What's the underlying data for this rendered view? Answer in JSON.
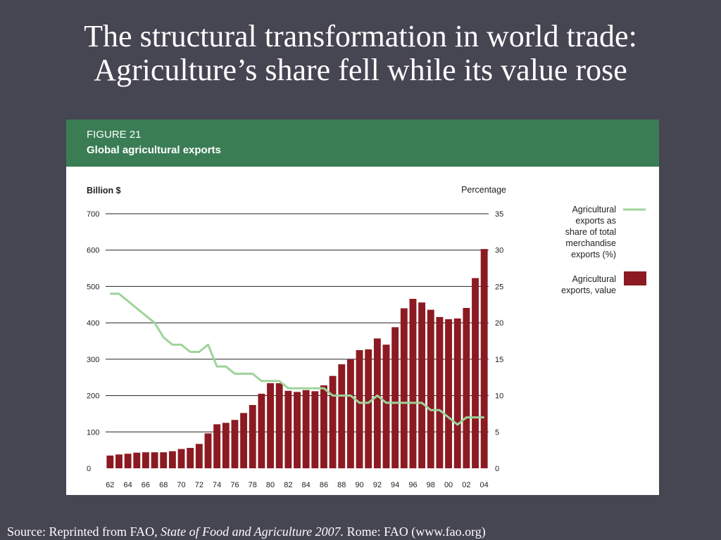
{
  "slide": {
    "title_line1": "The structural transformation in world trade:",
    "title_line2": "Agriculture’s share fell while its value rose"
  },
  "figure": {
    "number": "FIGURE 21",
    "caption": "Global agricultural exports"
  },
  "source": {
    "prefix": "Source: Reprinted from FAO, ",
    "title": "State of Food and Agriculture 2007.",
    "suffix": "  Rome: FAO (www.fao.org)"
  },
  "colors": {
    "background": "#464552",
    "header_green": "#3a7d55",
    "bar": "#8c1a22",
    "line": "#9dd49a"
  },
  "chart_data": {
    "type": "bar+line",
    "left_axis_label": "Billion $",
    "right_axis_label": "Percentage",
    "left_ylim": [
      0,
      700
    ],
    "right_ylim": [
      0,
      35
    ],
    "left_ticks": [
      "0",
      "100",
      "200",
      "300",
      "400",
      "500",
      "600",
      "700"
    ],
    "right_ticks": [
      "0",
      "5",
      "10",
      "15",
      "20",
      "25",
      "30",
      "35"
    ],
    "grid": "horizontal",
    "legend_position": "right",
    "x": [
      1962,
      1963,
      1964,
      1965,
      1966,
      1967,
      1968,
      1969,
      1970,
      1971,
      1972,
      1973,
      1974,
      1975,
      1976,
      1977,
      1978,
      1979,
      1980,
      1981,
      1982,
      1983,
      1984,
      1985,
      1986,
      1987,
      1988,
      1989,
      1990,
      1991,
      1992,
      1993,
      1994,
      1995,
      1996,
      1997,
      1998,
      1999,
      2000,
      2001,
      2002,
      2003,
      2004
    ],
    "x_tick_labels": [
      "62",
      "64",
      "66",
      "68",
      "70",
      "72",
      "74",
      "76",
      "78",
      "80",
      "82",
      "84",
      "86",
      "88",
      "90",
      "92",
      "94",
      "96",
      "98",
      "00",
      "02",
      "04"
    ],
    "series": [
      {
        "name": "Agricultural exports, value",
        "type": "bar",
        "axis": "left",
        "values": [
          35,
          38,
          40,
          43,
          44,
          44,
          44,
          47,
          53,
          56,
          67,
          96,
          121,
          125,
          133,
          152,
          174,
          205,
          234,
          234,
          213,
          210,
          215,
          212,
          228,
          254,
          286,
          300,
          325,
          327,
          357,
          340,
          388,
          440,
          466,
          456,
          436,
          416,
          410,
          412,
          441,
          523,
          603
        ]
      },
      {
        "name": "Agricultural exports as share of total merchandise exports (%)",
        "type": "line",
        "axis": "right",
        "values": [
          24,
          24,
          23,
          22,
          21,
          20,
          18,
          17,
          17,
          16,
          16,
          17,
          14,
          14,
          13,
          13,
          13,
          12,
          12,
          12,
          11,
          11,
          11,
          11,
          11,
          10,
          10,
          10,
          9,
          9,
          10,
          9,
          9,
          9,
          9,
          9,
          8,
          8,
          7,
          6,
          7,
          7,
          7
        ]
      }
    ],
    "legend": [
      "Agricultural exports as share of total merchandise exports (%)",
      "Agricultural exports, value"
    ],
    "legend_lines": {
      "line": [
        "Agricultural",
        "exports as",
        "share of total",
        "merchandise",
        "exports (%)"
      ],
      "bar": [
        "Agricultural",
        "exports, value"
      ]
    }
  }
}
